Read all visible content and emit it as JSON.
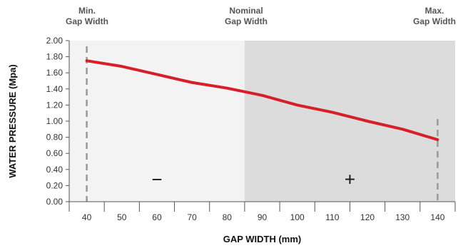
{
  "top_labels": {
    "min": {
      "line1": "Min.",
      "line2": "Gap Width"
    },
    "nominal": {
      "line1": "Nominal",
      "line2": "Gap Width"
    },
    "max": {
      "line1": "Max.",
      "line2": "Gap Width"
    }
  },
  "region_signs": {
    "left": "−",
    "right": "+"
  },
  "colors": {
    "line": "#d61f26",
    "left_region": "#f3f3f3",
    "right_region": "#dcdcdd",
    "marker": "#999999",
    "axis": "#555555"
  },
  "chart_data": {
    "type": "line",
    "title": "",
    "xlabel": "GAP WIDTH (mm)",
    "ylabel": "WATER PRESSURE (Mpa)",
    "x_ticks": [
      40,
      50,
      60,
      70,
      80,
      90,
      100,
      110,
      120,
      130,
      140
    ],
    "y_ticks": [
      "0.00",
      "0.20",
      "0.40",
      "0.60",
      "0.80",
      "1.00",
      "1.20",
      "1.40",
      "1.60",
      "1.80",
      "2.00"
    ],
    "ylim": [
      0,
      2.0
    ],
    "xlim": [
      35,
      145
    ],
    "grid": false,
    "series": [
      {
        "x": [
          40,
          50,
          60,
          70,
          80,
          90,
          100,
          110,
          120,
          130,
          140
        ],
        "values": [
          1.75,
          1.68,
          1.58,
          1.48,
          1.41,
          1.32,
          1.2,
          1.11,
          1.0,
          0.9,
          0.77
        ]
      }
    ],
    "region_boundary_x": 85,
    "reference_lines_x": [
      40,
      140
    ]
  }
}
